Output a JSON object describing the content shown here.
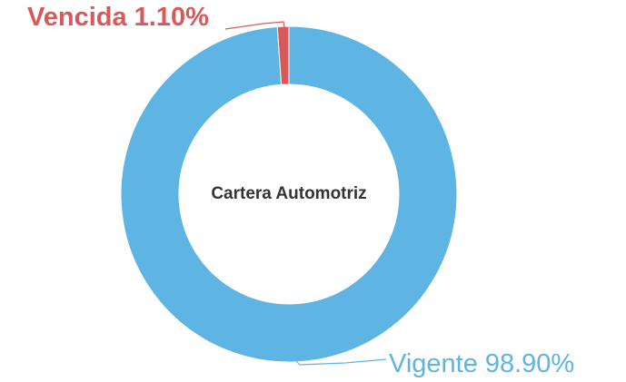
{
  "chart_data": {
    "type": "donut",
    "title": "Cartera Automotriz",
    "categories": [
      "Vencida",
      "Vigente"
    ],
    "values": [
      1.1,
      98.9
    ],
    "value_labels": [
      "1.10%",
      "98.90%"
    ],
    "colors": [
      "#d9585a",
      "#5eb4e3"
    ]
  }
}
